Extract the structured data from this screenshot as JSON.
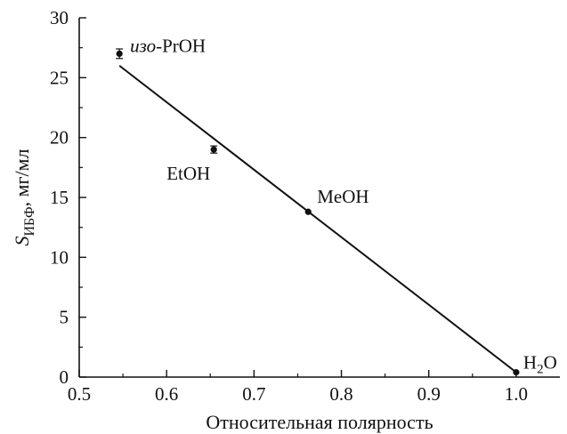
{
  "chart_data": {
    "type": "scatter",
    "title": "",
    "xlabel": "Относительная полярность",
    "ylabel": {
      "symbol": "S",
      "subscript": "ИБФ",
      "unit": ", мг/мл"
    },
    "xlim": [
      0.5,
      1.05
    ],
    "ylim": [
      0,
      30
    ],
    "x_ticks": [
      "0.5",
      "0.6",
      "0.7",
      "0.8",
      "0.9",
      "1.0"
    ],
    "y_ticks": [
      "0",
      "5",
      "10",
      "15",
      "20",
      "25",
      "30"
    ],
    "grid": false,
    "points": [
      {
        "x": 0.546,
        "y": 27.0,
        "err": 0.4,
        "label_prefix": "изо",
        "label_rest": "-PrOH"
      },
      {
        "x": 0.654,
        "y": 19.0,
        "err": 0.3,
        "label": "EtOH"
      },
      {
        "x": 0.762,
        "y": 13.8,
        "err": 0.0,
        "label": "MeOH"
      },
      {
        "x": 1.0,
        "y": 0.4,
        "err": 0.0,
        "label_main": "H",
        "label_sub": "2",
        "label_end": "O"
      }
    ],
    "fit_line": {
      "x": [
        0.546,
        1.0
      ],
      "y": [
        26.0,
        0.4
      ]
    }
  }
}
